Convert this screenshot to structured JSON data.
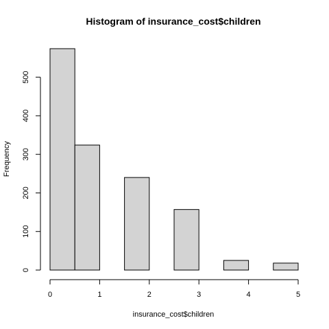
{
  "chart_data": {
    "type": "bar",
    "title": "Histogram of insurance_cost$children",
    "xlabel": "insurance_cost$children",
    "ylabel": "Frequency",
    "bins": [
      {
        "start": 0.0,
        "end": 0.5,
        "count": 574
      },
      {
        "start": 0.5,
        "end": 1.0,
        "count": 324
      },
      {
        "start": 1.0,
        "end": 1.5,
        "count": 0
      },
      {
        "start": 1.5,
        "end": 2.0,
        "count": 240
      },
      {
        "start": 2.0,
        "end": 2.5,
        "count": 0
      },
      {
        "start": 2.5,
        "end": 3.0,
        "count": 157
      },
      {
        "start": 3.0,
        "end": 3.5,
        "count": 0
      },
      {
        "start": 3.5,
        "end": 4.0,
        "count": 25
      },
      {
        "start": 4.0,
        "end": 4.5,
        "count": 0
      },
      {
        "start": 4.5,
        "end": 5.0,
        "count": 18
      }
    ],
    "xticks": [
      0,
      1,
      2,
      3,
      4,
      5
    ],
    "yticks": [
      0,
      100,
      200,
      300,
      400,
      500
    ],
    "xlim": [
      0,
      5
    ],
    "ylim": [
      0,
      574
    ],
    "grid": false,
    "colors": {
      "bar_fill": "#d3d3d3",
      "bar_stroke": "#000000"
    }
  }
}
